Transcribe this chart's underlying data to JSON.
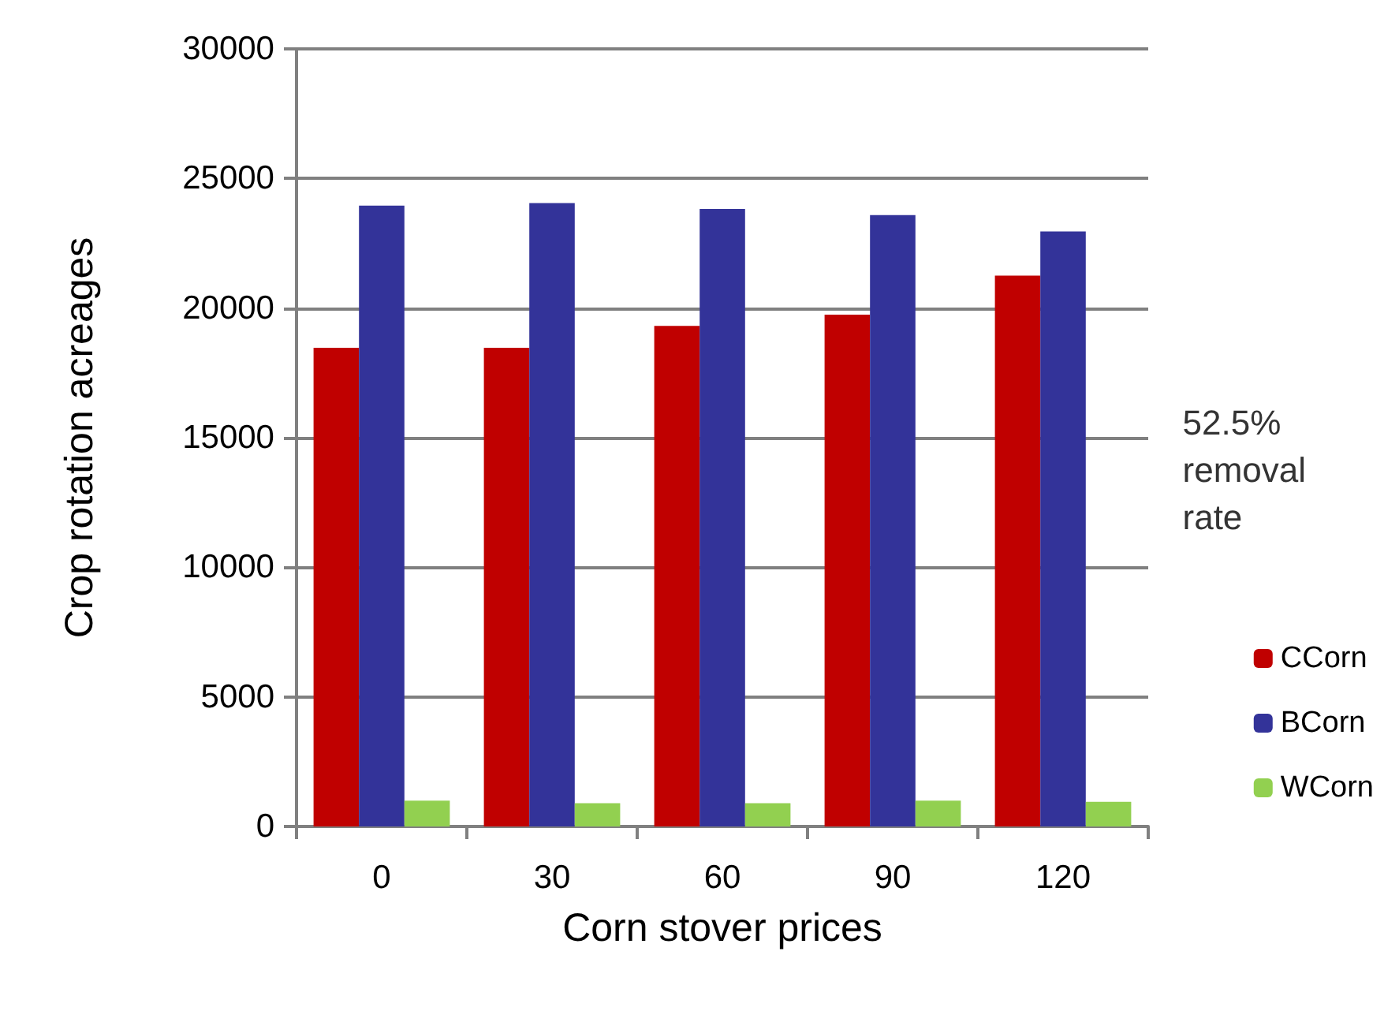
{
  "chart_data": {
    "type": "bar",
    "xlabel": "Corn stover prices",
    "ylabel": "Crop rotation acreages",
    "categories": [
      "0",
      "30",
      "60",
      "90",
      "120"
    ],
    "series": [
      {
        "name": "CCorn",
        "color": "#c00000",
        "values": [
          18470,
          18470,
          19310,
          19750,
          21250
        ]
      },
      {
        "name": "BCorn",
        "color": "#333399",
        "values": [
          23950,
          24050,
          23820,
          23590,
          22960
        ]
      },
      {
        "name": "WCorn",
        "color": "#92d050",
        "values": [
          1000,
          900,
          900,
          1000,
          950
        ]
      }
    ],
    "ylim": [
      0,
      30000
    ],
    "yticks": [
      0,
      5000,
      10000,
      15000,
      20000,
      25000,
      30000
    ],
    "grid": "y",
    "legend": "right",
    "annotations": [
      "52.5%\nremoval\nrate"
    ]
  }
}
